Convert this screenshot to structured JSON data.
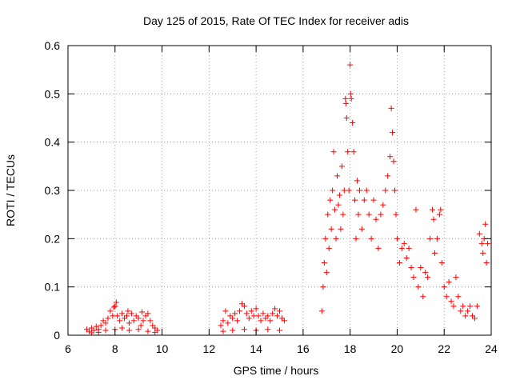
{
  "chart_data": {
    "type": "scatter",
    "title": "Day 125 of 2015, Rate Of TEC Index for receiver adis",
    "xlabel": "GPS time / hours",
    "ylabel": "ROTI / TECUs",
    "xlim": [
      6,
      24
    ],
    "ylim": [
      0,
      0.6
    ],
    "xticks": [
      6,
      8,
      10,
      12,
      14,
      16,
      18,
      20,
      22,
      24
    ],
    "yticks": [
      0,
      0.1,
      0.2,
      0.3,
      0.4,
      0.5,
      0.6
    ],
    "xtick_labels": [
      "6",
      "8",
      "10",
      "12",
      "14",
      "16",
      "18",
      "20",
      "22",
      "24"
    ],
    "ytick_labels": [
      "0",
      "0.1",
      "0.2",
      "0.3",
      "0.4",
      "0.5",
      "0.6"
    ],
    "grid": true,
    "marker": "+",
    "color": "#ff0000",
    "series": [
      {
        "name": "ROTI",
        "points": [
          [
            6.8,
            0.012
          ],
          [
            6.9,
            0.008
          ],
          [
            7.0,
            0.015
          ],
          [
            7.1,
            0.01
          ],
          [
            7.2,
            0.018
          ],
          [
            7.3,
            0.012
          ],
          [
            7.4,
            0.02
          ],
          [
            7.5,
            0.03
          ],
          [
            7.6,
            0.025
          ],
          [
            7.7,
            0.035
          ],
          [
            7.8,
            0.05
          ],
          [
            7.9,
            0.04
          ],
          [
            8.0,
            0.06
          ],
          [
            8.1,
            0.04
          ],
          [
            8.2,
            0.03
          ],
          [
            8.3,
            0.045
          ],
          [
            8.4,
            0.035
          ],
          [
            8.5,
            0.04
          ],
          [
            8.6,
            0.025
          ],
          [
            8.7,
            0.045
          ],
          [
            8.8,
            0.03
          ],
          [
            8.9,
            0.04
          ],
          [
            9.0,
            0.035
          ],
          [
            9.1,
            0.02
          ],
          [
            9.2,
            0.03
          ],
          [
            9.3,
            0.04
          ],
          [
            9.4,
            0.045
          ],
          [
            9.5,
            0.03
          ],
          [
            9.6,
            0.02
          ],
          [
            9.7,
            0.015
          ],
          [
            9.8,
            0.01
          ],
          [
            7.0,
            0.005
          ],
          [
            7.3,
            0.006
          ],
          [
            7.6,
            0.01
          ],
          [
            8.0,
            0.012
          ],
          [
            8.3,
            0.015
          ],
          [
            8.6,
            0.01
          ],
          [
            9.0,
            0.012
          ],
          [
            9.4,
            0.008
          ],
          [
            9.7,
            0.006
          ],
          [
            8.05,
            0.068
          ],
          [
            7.95,
            0.058
          ],
          [
            8.55,
            0.05
          ],
          [
            9.15,
            0.048
          ],
          [
            12.5,
            0.02
          ],
          [
            12.6,
            0.03
          ],
          [
            12.7,
            0.05
          ],
          [
            12.8,
            0.025
          ],
          [
            12.9,
            0.04
          ],
          [
            13.0,
            0.035
          ],
          [
            13.1,
            0.045
          ],
          [
            13.2,
            0.03
          ],
          [
            13.3,
            0.05
          ],
          [
            13.4,
            0.065
          ],
          [
            13.5,
            0.06
          ],
          [
            13.6,
            0.045
          ],
          [
            13.7,
            0.035
          ],
          [
            13.8,
            0.05
          ],
          [
            13.9,
            0.04
          ],
          [
            14.0,
            0.055
          ],
          [
            14.1,
            0.04
          ],
          [
            14.2,
            0.03
          ],
          [
            14.3,
            0.045
          ],
          [
            14.4,
            0.035
          ],
          [
            14.5,
            0.04
          ],
          [
            14.6,
            0.03
          ],
          [
            14.7,
            0.045
          ],
          [
            14.8,
            0.055
          ],
          [
            14.9,
            0.04
          ],
          [
            15.0,
            0.05
          ],
          [
            15.1,
            0.035
          ],
          [
            15.2,
            0.03
          ],
          [
            12.6,
            0.008
          ],
          [
            13.0,
            0.01
          ],
          [
            13.5,
            0.012
          ],
          [
            14.0,
            0.01
          ],
          [
            14.5,
            0.012
          ],
          [
            15.0,
            0.01
          ],
          [
            16.8,
            0.05
          ],
          [
            16.85,
            0.1
          ],
          [
            16.9,
            0.15
          ],
          [
            16.95,
            0.2
          ],
          [
            17.0,
            0.13
          ],
          [
            17.05,
            0.25
          ],
          [
            17.1,
            0.18
          ],
          [
            17.15,
            0.28
          ],
          [
            17.2,
            0.22
          ],
          [
            17.25,
            0.3
          ],
          [
            17.3,
            0.38
          ],
          [
            17.35,
            0.26
          ],
          [
            17.4,
            0.2
          ],
          [
            17.45,
            0.33
          ],
          [
            17.5,
            0.27
          ],
          [
            17.55,
            0.29
          ],
          [
            17.6,
            0.22
          ],
          [
            17.65,
            0.35
          ],
          [
            17.7,
            0.25
          ],
          [
            17.75,
            0.3
          ],
          [
            17.8,
            0.49
          ],
          [
            17.82,
            0.48
          ],
          [
            17.85,
            0.45
          ],
          [
            17.9,
            0.38
          ],
          [
            17.95,
            0.3
          ],
          [
            18.0,
            0.56
          ],
          [
            18.02,
            0.5
          ],
          [
            18.05,
            0.49
          ],
          [
            18.1,
            0.44
          ],
          [
            18.15,
            0.38
          ],
          [
            18.2,
            0.28
          ],
          [
            18.25,
            0.2
          ],
          [
            18.3,
            0.32
          ],
          [
            18.35,
            0.25
          ],
          [
            18.4,
            0.3
          ],
          [
            18.5,
            0.22
          ],
          [
            18.6,
            0.28
          ],
          [
            18.7,
            0.3
          ],
          [
            18.8,
            0.25
          ],
          [
            18.9,
            0.2
          ],
          [
            19.0,
            0.28
          ],
          [
            19.1,
            0.24
          ],
          [
            19.2,
            0.18
          ],
          [
            19.3,
            0.25
          ],
          [
            19.4,
            0.27
          ],
          [
            19.5,
            0.3
          ],
          [
            19.6,
            0.33
          ],
          [
            19.7,
            0.37
          ],
          [
            19.75,
            0.47
          ],
          [
            19.8,
            0.42
          ],
          [
            19.85,
            0.36
          ],
          [
            19.9,
            0.3
          ],
          [
            19.95,
            0.25
          ],
          [
            20.0,
            0.2
          ],
          [
            20.1,
            0.15
          ],
          [
            20.2,
            0.18
          ],
          [
            20.3,
            0.19
          ],
          [
            20.4,
            0.16
          ],
          [
            20.5,
            0.18
          ],
          [
            20.6,
            0.14
          ],
          [
            20.7,
            0.12
          ],
          [
            20.8,
            0.26
          ],
          [
            20.9,
            0.1
          ],
          [
            21.0,
            0.14
          ],
          [
            21.1,
            0.08
          ],
          [
            21.2,
            0.13
          ],
          [
            21.3,
            0.12
          ],
          [
            21.4,
            0.2
          ],
          [
            21.5,
            0.26
          ],
          [
            21.55,
            0.24
          ],
          [
            21.6,
            0.17
          ],
          [
            21.7,
            0.2
          ],
          [
            21.8,
            0.25
          ],
          [
            21.85,
            0.26
          ],
          [
            21.9,
            0.15
          ],
          [
            22.0,
            0.1
          ],
          [
            22.1,
            0.08
          ],
          [
            22.2,
            0.11
          ],
          [
            22.3,
            0.07
          ],
          [
            22.4,
            0.06
          ],
          [
            22.5,
            0.12
          ],
          [
            22.6,
            0.08
          ],
          [
            22.7,
            0.05
          ],
          [
            22.8,
            0.06
          ],
          [
            22.9,
            0.04
          ],
          [
            23.0,
            0.05
          ],
          [
            23.1,
            0.06
          ],
          [
            23.2,
            0.04
          ],
          [
            23.3,
            0.035
          ],
          [
            23.4,
            0.06
          ],
          [
            23.5,
            0.21
          ],
          [
            23.6,
            0.19
          ],
          [
            23.65,
            0.17
          ],
          [
            23.7,
            0.2
          ],
          [
            23.75,
            0.23
          ],
          [
            23.8,
            0.15
          ],
          [
            23.85,
            0.19
          ]
        ]
      }
    ]
  }
}
